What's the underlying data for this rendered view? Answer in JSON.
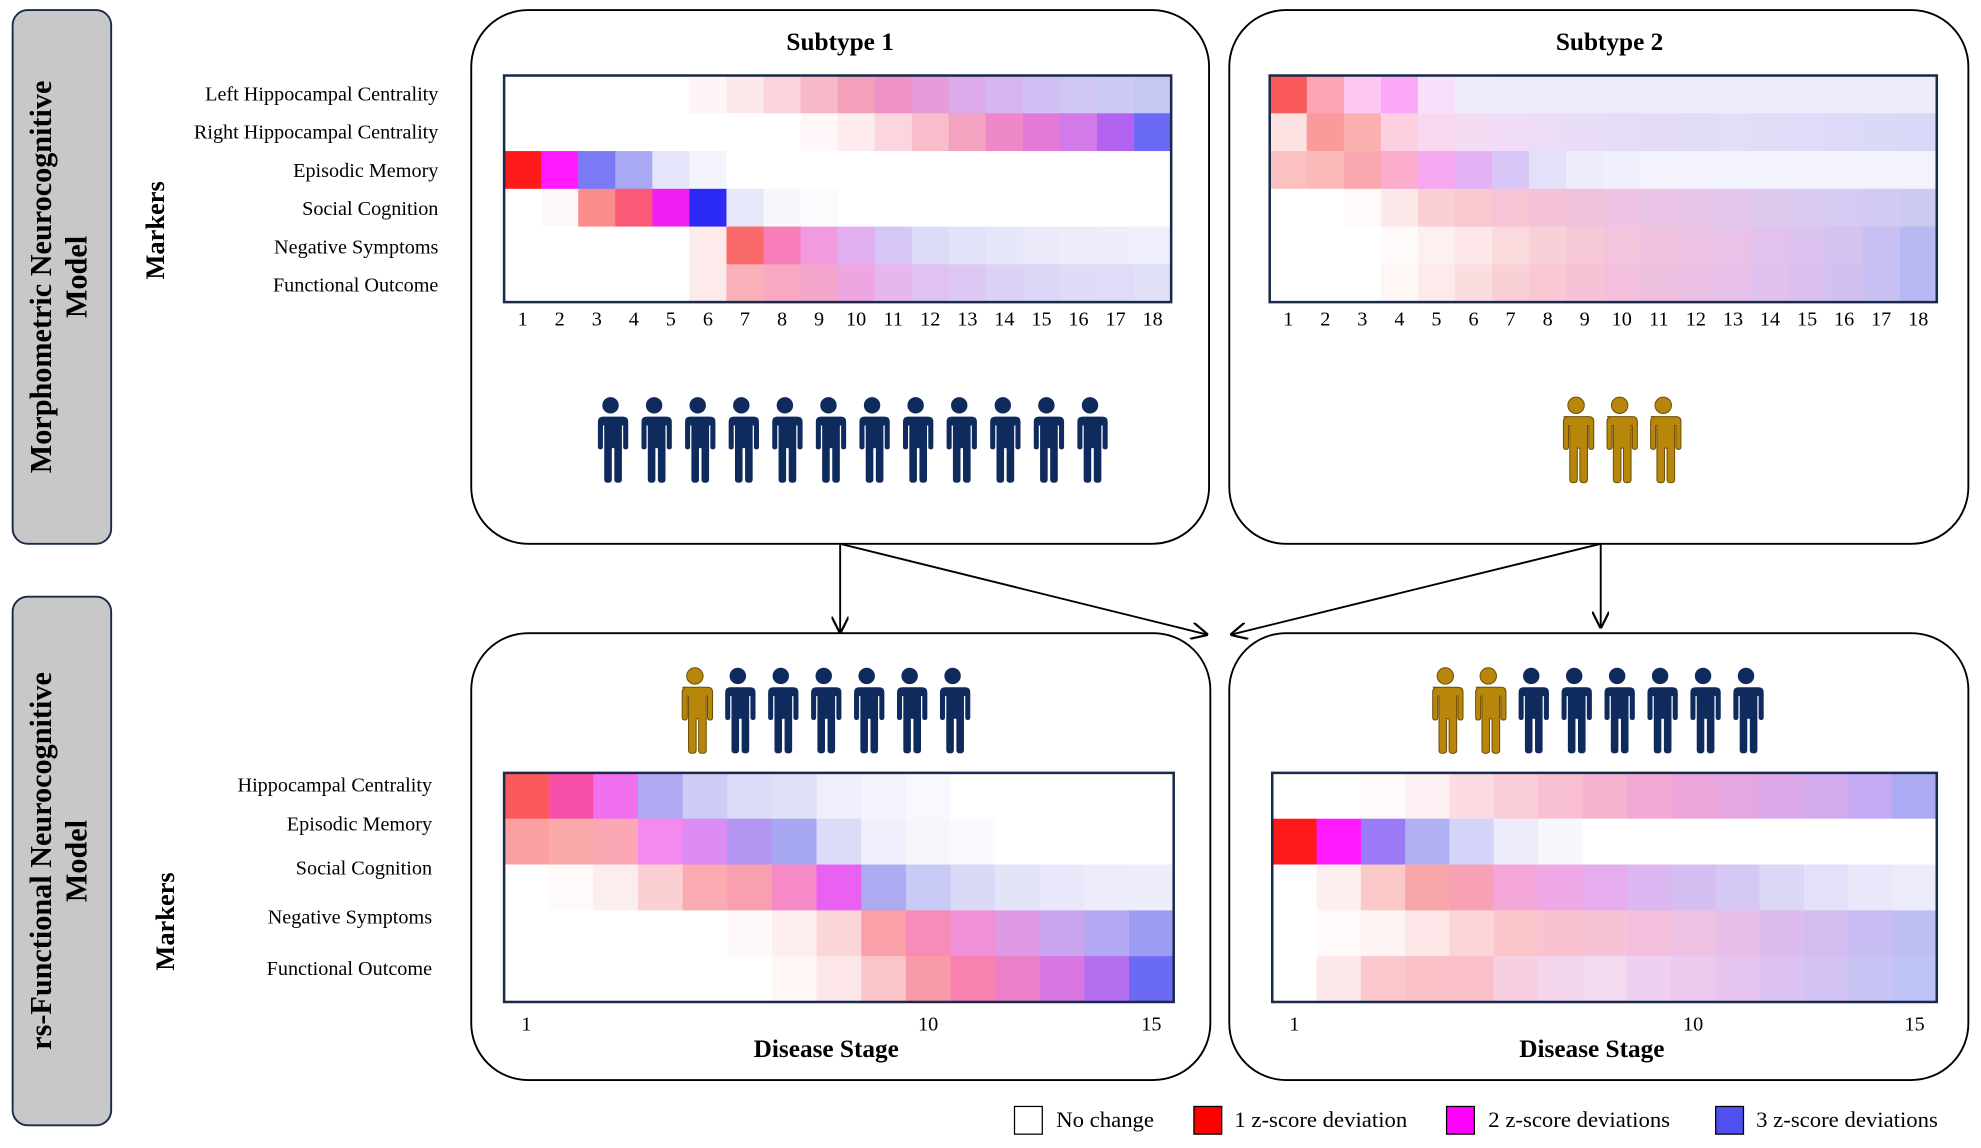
{
  "side_labels": [
    {
      "lines": [
        "Morphometric Neurocognitive",
        "Model"
      ]
    },
    {
      "lines": [
        "rs-Functional Neurocognitive",
        "Model"
      ]
    }
  ],
  "markers_label": "Markers",
  "top": {
    "row_labels": [
      "Left Hippocampal Centrality",
      "Right Hippocampal Centrality",
      "Episodic Memory",
      "Social Cognition",
      "Negative Symptoms",
      "Functional Outcome"
    ],
    "ticks": [
      1,
      2,
      3,
      4,
      5,
      6,
      7,
      8,
      9,
      10,
      11,
      12,
      13,
      14,
      15,
      16,
      17,
      18
    ],
    "panels": [
      {
        "title": "Subtype 1",
        "people": [
          "#0f2a5c",
          "#0f2a5c",
          "#0f2a5c",
          "#0f2a5c",
          "#0f2a5c",
          "#0f2a5c",
          "#0f2a5c",
          "#0f2a5c",
          "#0f2a5c",
          "#0f2a5c",
          "#0f2a5c",
          "#0f2a5c"
        ],
        "heatmap": [
          [
            "#ffffff",
            "#ffffff",
            "#ffffff",
            "#ffffff",
            "#ffffff",
            "#fff5f6",
            "#fde9ec",
            "#fbd3dc",
            "#f7b9c8",
            "#f4a0ba",
            "#ef92c6",
            "#e99ad8",
            "#ddaaea",
            "#d6b6f0",
            "#d1c0f4",
            "#cfc6f5",
            "#cccaf5",
            "#c4c8f3"
          ],
          [
            "#ffffff",
            "#ffffff",
            "#ffffff",
            "#ffffff",
            "#ffffff",
            "#ffffff",
            "#ffffff",
            "#ffffff",
            "#fff7f8",
            "#fdebee",
            "#fbd6de",
            "#f8bccb",
            "#f3a2c0",
            "#ee88c8",
            "#e57ad6",
            "#d27ae8",
            "#b264f0",
            "#6a6af5"
          ],
          [
            "#ff1a1a",
            "#ff1aff",
            "#7a7af5",
            "#a9a9f3",
            "#e4e4fa",
            "#f4f4fd",
            "#ffffff",
            "#ffffff",
            "#ffffff",
            "#ffffff",
            "#ffffff",
            "#ffffff",
            "#ffffff",
            "#ffffff",
            "#ffffff",
            "#ffffff",
            "#ffffff",
            "#ffffff"
          ],
          [
            "#ffffff",
            "#fdf9fa",
            "#fa8c8c",
            "#fa5a78",
            "#f01ef0",
            "#2b2bf5",
            "#e7e7fa",
            "#f7f7fd",
            "#fbfbfe",
            "#ffffff",
            "#ffffff",
            "#ffffff",
            "#ffffff",
            "#ffffff",
            "#ffffff",
            "#ffffff",
            "#ffffff",
            "#ffffff"
          ],
          [
            "#ffffff",
            "#ffffff",
            "#ffffff",
            "#ffffff",
            "#ffffff",
            "#fdeaea",
            "#fa6a6a",
            "#f87db8",
            "#f29ae0",
            "#e2b0f0",
            "#d6c6f5",
            "#dcdcf8",
            "#e2e2f9",
            "#e6e6fa",
            "#eaeafb",
            "#ececfb",
            "#eeeefb",
            "#efeffc"
          ],
          [
            "#ffffff",
            "#ffffff",
            "#ffffff",
            "#ffffff",
            "#ffffff",
            "#fdeaea",
            "#f9b0b8",
            "#f8a8c0",
            "#f5a6cc",
            "#eea6e0",
            "#e6b6ef",
            "#e0c2f2",
            "#dcc8f3",
            "#dcd0f5",
            "#dcd6f7",
            "#dedaf8",
            "#dedcf8",
            "#e0e0f9"
          ]
        ]
      },
      {
        "title": "Subtype 2",
        "people": [
          "#b8860b",
          "#b8860b",
          "#b8860b"
        ],
        "heatmap": [
          [
            "#fa5a5a",
            "#fca5b5",
            "#fdc8f0",
            "#fca8f8",
            "#f6e0fa",
            "#efecfb",
            "#ececfb",
            "#ececfb",
            "#ececfb",
            "#ececfb",
            "#ececfb",
            "#ececfb",
            "#ececfb",
            "#ececfb",
            "#ececfb",
            "#ececfb",
            "#ececfb",
            "#ececfb"
          ],
          [
            "#fde0e0",
            "#fa9a9a",
            "#fbb0b0",
            "#fcd0e0",
            "#f8d8f0",
            "#f4dcf4",
            "#f0dcf6",
            "#ecdcf6",
            "#e8dcf6",
            "#e6dcf7",
            "#e4dcf7",
            "#e2dcf7",
            "#e2ddf8",
            "#e0dcf8",
            "#dedcf8",
            "#dcdaf8",
            "#dad9f8",
            "#d8d8f8"
          ],
          [
            "#fbc0c0",
            "#fbbaba",
            "#fba8b0",
            "#fcaccd",
            "#f5a8f0",
            "#e2b2f4",
            "#d8c6f6",
            "#e4e0fa",
            "#ececfb",
            "#f0f0fc",
            "#f3f3fd",
            "#f3f3fd",
            "#f3f3fd",
            "#f3f3fd",
            "#f3f3fd",
            "#f3f3fd",
            "#f3f3fd",
            "#f3f3fd"
          ],
          [
            "#ffffff",
            "#ffffff",
            "#fffafa",
            "#fde8ea",
            "#fad0d4",
            "#f8c8d0",
            "#f6c4d4",
            "#f4c2d8",
            "#f2c2dc",
            "#eec2e2",
            "#eac4e6",
            "#e6c4ea",
            "#e2c6ec",
            "#dec8ee",
            "#dacaf0",
            "#d6caf2",
            "#d2caf2",
            "#cccaf3"
          ],
          [
            "#ffffff",
            "#ffffff",
            "#ffffff",
            "#fffafa",
            "#fdf0f0",
            "#fce6e8",
            "#fadadd",
            "#f8d0d8",
            "#f6c8d8",
            "#f4c4dc",
            "#f0c2e0",
            "#ecc2e4",
            "#e8c2e8",
            "#e2c2ec",
            "#dcc2ee",
            "#d4c2f0",
            "#c8c0f2",
            "#b8b8f2"
          ],
          [
            "#ffffff",
            "#ffffff",
            "#ffffff",
            "#fff6f6",
            "#fdeaec",
            "#fbdcdf",
            "#f9d0d6",
            "#f8c8d4",
            "#f6c2d6",
            "#f2c0dc",
            "#eec0e0",
            "#eac0e4",
            "#e6c0e8",
            "#e0c0ec",
            "#dac0ee",
            "#d2c0f0",
            "#c8c0f2",
            "#b8b8f2"
          ]
        ]
      }
    ]
  },
  "bottom": {
    "row_labels": [
      "Hippocampal Centrality",
      "Episodic Memory",
      "Social Cognition",
      "Negative Symptoms",
      "Functional Outcome"
    ],
    "ticks": [
      1,
      10,
      15
    ],
    "panels": [
      {
        "axis_title": "Disease Stage",
        "people": [
          "#b8860b",
          "#0f2a5c",
          "#0f2a5c",
          "#0f2a5c",
          "#0f2a5c",
          "#0f2a5c",
          "#0f2a5c"
        ],
        "heatmap": [
          [
            "#fa5a5a",
            "#f850a8",
            "#f070f0",
            "#b0a8f0",
            "#ccccf6",
            "#dcdcf8",
            "#e0e0f9",
            "#eeeefc",
            "#f4f4fd",
            "#f8f8fe",
            "#ffffff",
            "#ffffff",
            "#ffffff",
            "#ffffff",
            "#ffffff"
          ],
          [
            "#fba0a0",
            "#fbaaaa",
            "#fba8b4",
            "#f48af0",
            "#dc8cf2",
            "#b496f2",
            "#a8a8f2",
            "#dcdcf8",
            "#f0f0fc",
            "#f6f6fd",
            "#f9f9fe",
            "#ffffff",
            "#ffffff",
            "#ffffff",
            "#ffffff"
          ],
          [
            "#ffffff",
            "#fffafa",
            "#fdeeee",
            "#fbd0d2",
            "#faaab0",
            "#f9a0b0",
            "#f68ac8",
            "#ea60f0",
            "#aeaaf2",
            "#cacaf6",
            "#dadaf8",
            "#e4e4f9",
            "#e8e8fa",
            "#ececfb",
            "#ededfb"
          ],
          [
            "#ffffff",
            "#ffffff",
            "#ffffff",
            "#ffffff",
            "#ffffff",
            "#fff8f8",
            "#fdeef0",
            "#fbd6d8",
            "#f9a0a8",
            "#f78cb8",
            "#ef90d8",
            "#df9ae6",
            "#caa4ee",
            "#b4a8f2",
            "#9c9cf2"
          ],
          [
            "#ffffff",
            "#ffffff",
            "#ffffff",
            "#ffffff",
            "#ffffff",
            "#ffffff",
            "#fff6f6",
            "#fde6e8",
            "#fbc4c8",
            "#f99aa8",
            "#f782b0",
            "#ec80c8",
            "#d876e2",
            "#b46ef0",
            "#6a6af2"
          ]
        ]
      },
      {
        "axis_title": "Disease Stage",
        "people": [
          "#b8860b",
          "#b8860b",
          "#0f2a5c",
          "#0f2a5c",
          "#0f2a5c",
          "#0f2a5c",
          "#0f2a5c",
          "#0f2a5c"
        ],
        "heatmap": [
          [
            "#ffffff",
            "#ffffff",
            "#fffafa",
            "#fdf0f2",
            "#fcdce2",
            "#facdd8",
            "#f8c0d0",
            "#f6b4d0",
            "#f2aad4",
            "#eca6da",
            "#e6a6e2",
            "#dca8ea",
            "#d4aaee",
            "#c4aaf2",
            "#acaaf2"
          ],
          [
            "#ff1a1a",
            "#ff1aff",
            "#9a7af5",
            "#b0b0f3",
            "#d4d4f8",
            "#ececfb",
            "#f6f6fd",
            "#ffffff",
            "#ffffff",
            "#ffffff",
            "#ffffff",
            "#ffffff",
            "#ffffff",
            "#ffffff",
            "#ffffff"
          ],
          [
            "#ffffff",
            "#fdeff0",
            "#fbc8c8",
            "#f9a6aa",
            "#f7a0b6",
            "#f4a6d8",
            "#eea8e6",
            "#e6acee",
            "#dcb6f0",
            "#d4bef2",
            "#d6c8f4",
            "#dcd6f7",
            "#e4e0f9",
            "#e8e8fa",
            "#ecebfb"
          ],
          [
            "#ffffff",
            "#fffafa",
            "#fef4f4",
            "#fde6e8",
            "#fbd6d8",
            "#fac6cc",
            "#f8c2d0",
            "#f6c2d6",
            "#f2c0dc",
            "#eec0e2",
            "#e6bee8",
            "#dcbcee",
            "#d2bcf0",
            "#c8bcf2",
            "#bebef2"
          ],
          [
            "#ffffff",
            "#fde8ea",
            "#fbc6cc",
            "#fac0c8",
            "#f9c0cc",
            "#f6d0e2",
            "#f4d6ec",
            "#f2daf0",
            "#efd0f0",
            "#eccaf0",
            "#e6c6f0",
            "#dcc2f2",
            "#d2c2f4",
            "#c8c4f4",
            "#bec2f4"
          ]
        ]
      }
    ]
  },
  "legend": [
    {
      "label": "No change",
      "color": "#ffffff"
    },
    {
      "label": "1 z-score deviation",
      "color": "#ff0000"
    },
    {
      "label": "2 z-score deviations",
      "color": "#ff00ff"
    },
    {
      "label": "3 z-score deviations",
      "color": "#5050f0"
    }
  ]
}
